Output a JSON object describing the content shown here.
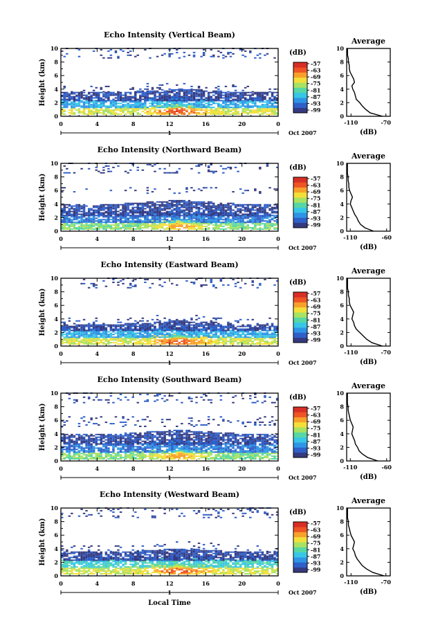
{
  "figure": {
    "xlabel": "Local Time",
    "date_label": "Oct 2007",
    "day_label": "1"
  },
  "colorbar": {
    "unit": "(dB)",
    "ticks": [
      "-57",
      "-63",
      "-69",
      "-75",
      "-81",
      "-87",
      "-93",
      "-99"
    ],
    "colors": [
      "#353a80",
      "#2f5fc8",
      "#2e94e6",
      "#37c7e6",
      "#56d7a4",
      "#a8e262",
      "#f3df3a",
      "#f7a12a",
      "#ee5424",
      "#d72e25"
    ]
  },
  "chart_data": [
    {
      "type": "heatmap",
      "title": "Echo Intensity (Vertical Beam)",
      "xlabel": "",
      "ylabel": "Height (km)",
      "x_ticks": [
        "0",
        "4",
        "8",
        "12",
        "16",
        "20",
        "0"
      ],
      "xlim": [
        0,
        24
      ],
      "y_ticks": [
        "0",
        "2",
        "4",
        "6",
        "8",
        "10"
      ],
      "ylim": [
        0,
        10
      ],
      "layers": [
        {
          "height_km": [
            0.2,
            1.2
          ],
          "level": 5
        },
        {
          "height_km": [
            1.2,
            2.2
          ],
          "level": 2
        },
        {
          "height_km": [
            2.2,
            3.5
          ],
          "level": 0
        },
        {
          "height_km": [
            3.5,
            4.5
          ],
          "level": 0,
          "sparse": true
        },
        {
          "height_km": [
            8.5,
            10.0
          ],
          "level": 0,
          "sparse": true
        }
      ],
      "peak": {
        "time_h": 13,
        "height_km": 0.6,
        "level": 8
      },
      "profile": {
        "title": "Average",
        "xlabel": "(dB)",
        "x_ticks": [
          "-110",
          "-70"
        ],
        "xlim": [
          -115,
          -65
        ],
        "height_km": [
          0,
          0.5,
          1,
          1.5,
          2,
          2.5,
          3,
          3.5,
          4,
          4.5,
          5,
          5.5,
          6,
          6.5,
          7,
          7.5,
          8,
          8.5,
          9,
          9.5,
          10
        ],
        "db": [
          -74,
          -88,
          -93,
          -97,
          -100,
          -104,
          -105,
          -106,
          -108,
          -109,
          -106,
          -107,
          -109,
          -111,
          -112,
          -112,
          -113,
          -113,
          -114,
          -114,
          -114
        ]
      }
    },
    {
      "type": "heatmap",
      "title": "Echo Intensity (Northward Beam)",
      "xlabel": "",
      "ylabel": "Height (km)",
      "x_ticks": [
        "0",
        "4",
        "8",
        "12",
        "16",
        "20",
        "0"
      ],
      "xlim": [
        0,
        24
      ],
      "y_ticks": [
        "0",
        "2",
        "4",
        "6",
        "8",
        "10"
      ],
      "ylim": [
        0,
        10
      ],
      "layers": [
        {
          "height_km": [
            0.2,
            1.2
          ],
          "level": 4
        },
        {
          "height_km": [
            1.2,
            2.2
          ],
          "level": 1
        },
        {
          "height_km": [
            2.2,
            4.0
          ],
          "level": 0
        },
        {
          "height_km": [
            5.5,
            6.5
          ],
          "level": 0,
          "sparse": true
        },
        {
          "height_km": [
            8.5,
            10.0
          ],
          "level": 0,
          "sparse": true
        }
      ],
      "peak": {
        "time_h": 13,
        "height_km": 0.6,
        "level": 7
      },
      "profile": {
        "title": "Average",
        "xlabel": "(dB)",
        "x_ticks": [
          "-110",
          "-60"
        ],
        "xlim": [
          -115,
          -55
        ],
        "height_km": [
          0,
          0.5,
          1,
          1.5,
          2,
          2.5,
          3,
          3.5,
          4,
          4.5,
          5,
          5.5,
          6,
          6.5,
          7,
          7.5,
          8,
          8.5,
          9,
          9.5,
          10
        ],
        "db": [
          -78,
          -90,
          -96,
          -99,
          -101,
          -104,
          -106,
          -108,
          -110,
          -109,
          -107,
          -109,
          -111,
          -112,
          -112,
          -113,
          -113,
          -114,
          -114,
          -114,
          -114
        ]
      }
    },
    {
      "type": "heatmap",
      "title": "Echo Intensity (Eastward Beam)",
      "xlabel": "",
      "ylabel": "Height (km)",
      "x_ticks": [
        "0",
        "4",
        "8",
        "12",
        "16",
        "20",
        "0"
      ],
      "xlim": [
        0,
        24
      ],
      "y_ticks": [
        "0",
        "2",
        "4",
        "6",
        "8",
        "10"
      ],
      "ylim": [
        0,
        10
      ],
      "layers": [
        {
          "height_km": [
            0.2,
            1.2
          ],
          "level": 5
        },
        {
          "height_km": [
            1.2,
            2.2
          ],
          "level": 2
        },
        {
          "height_km": [
            2.2,
            3.2
          ],
          "level": 0
        },
        {
          "height_km": [
            3.2,
            4.2
          ],
          "level": 0,
          "sparse": true
        },
        {
          "height_km": [
            8.5,
            10.0
          ],
          "level": 0,
          "sparse": true
        }
      ],
      "peak": {
        "time_h": 13,
        "height_km": 0.5,
        "level": 8
      },
      "profile": {
        "title": "Average",
        "xlabel": "(dB)",
        "x_ticks": [
          "-110",
          "-70"
        ],
        "xlim": [
          -115,
          -65
        ],
        "height_km": [
          0,
          0.5,
          1,
          1.5,
          2,
          2.5,
          3,
          3.5,
          4,
          4.5,
          5,
          5.5,
          6,
          6.5,
          7,
          7.5,
          8,
          8.5,
          9,
          9.5,
          10
        ],
        "db": [
          -74,
          -86,
          -92,
          -96,
          -100,
          -104,
          -106,
          -107,
          -109,
          -108,
          -107,
          -109,
          -111,
          -112,
          -112,
          -113,
          -113,
          -114,
          -114,
          -114,
          -114
        ]
      }
    },
    {
      "type": "heatmap",
      "title": "Echo Intensity (Southward Beam)",
      "xlabel": "",
      "ylabel": "Height (km)",
      "x_ticks": [
        "0",
        "4",
        "8",
        "12",
        "16",
        "20",
        "0"
      ],
      "xlim": [
        0,
        24
      ],
      "y_ticks": [
        "0",
        "2",
        "4",
        "6",
        "8",
        "10"
      ],
      "ylim": [
        0,
        10
      ],
      "layers": [
        {
          "height_km": [
            0.2,
            1.2
          ],
          "level": 4
        },
        {
          "height_km": [
            1.2,
            2.4
          ],
          "level": 1
        },
        {
          "height_km": [
            2.4,
            4.0
          ],
          "level": 0
        },
        {
          "height_km": [
            5.0,
            6.5
          ],
          "level": 0,
          "sparse": true
        },
        {
          "height_km": [
            8.5,
            10.0
          ],
          "level": 0,
          "sparse": true
        }
      ],
      "peak": {
        "time_h": 13,
        "height_km": 0.6,
        "level": 7
      },
      "profile": {
        "title": "Average",
        "xlabel": "(dB)",
        "x_ticks": [
          "-110",
          "-60"
        ],
        "xlim": [
          -115,
          -55
        ],
        "height_km": [
          0,
          0.5,
          1,
          1.5,
          2,
          2.5,
          3,
          3.5,
          4,
          4.5,
          5,
          5.5,
          6,
          6.5,
          7,
          7.5,
          8,
          8.5,
          9,
          9.5,
          10
        ],
        "db": [
          -72,
          -86,
          -93,
          -98,
          -100,
          -103,
          -104,
          -106,
          -108,
          -107,
          -106,
          -108,
          -110,
          -111,
          -112,
          -113,
          -113,
          -114,
          -114,
          -114,
          -114
        ]
      }
    },
    {
      "type": "heatmap",
      "title": "Echo Intensity (Westward Beam)",
      "xlabel": "Local Time",
      "ylabel": "Height (km)",
      "x_ticks": [
        "0",
        "4",
        "8",
        "12",
        "16",
        "20",
        "0"
      ],
      "xlim": [
        0,
        24
      ],
      "y_ticks": [
        "0",
        "2",
        "4",
        "6",
        "8",
        "10"
      ],
      "ylim": [
        0,
        10
      ],
      "layers": [
        {
          "height_km": [
            0.2,
            1.2
          ],
          "level": 5
        },
        {
          "height_km": [
            1.2,
            2.2
          ],
          "level": 3
        },
        {
          "height_km": [
            2.2,
            3.5
          ],
          "level": 0
        },
        {
          "height_km": [
            3.5,
            4.5
          ],
          "level": 0,
          "sparse": true
        },
        {
          "height_km": [
            8.5,
            10.0
          ],
          "level": 0,
          "sparse": true
        }
      ],
      "peak": {
        "time_h": 13,
        "height_km": 0.6,
        "level": 8
      },
      "profile": {
        "title": "Average",
        "xlabel": "(dB)",
        "x_ticks": [
          "-110",
          "-70"
        ],
        "xlim": [
          -115,
          -65
        ],
        "height_km": [
          0,
          0.5,
          1,
          1.5,
          2,
          2.5,
          3,
          3.5,
          4,
          4.5,
          5,
          5.5,
          6,
          6.5,
          7,
          7.5,
          8,
          8.5,
          9,
          9.5,
          10
        ],
        "db": [
          -72,
          -85,
          -92,
          -97,
          -100,
          -103,
          -105,
          -106,
          -108,
          -107,
          -106,
          -108,
          -110,
          -111,
          -112,
          -113,
          -113,
          -114,
          -114,
          -114,
          -114
        ]
      }
    }
  ]
}
